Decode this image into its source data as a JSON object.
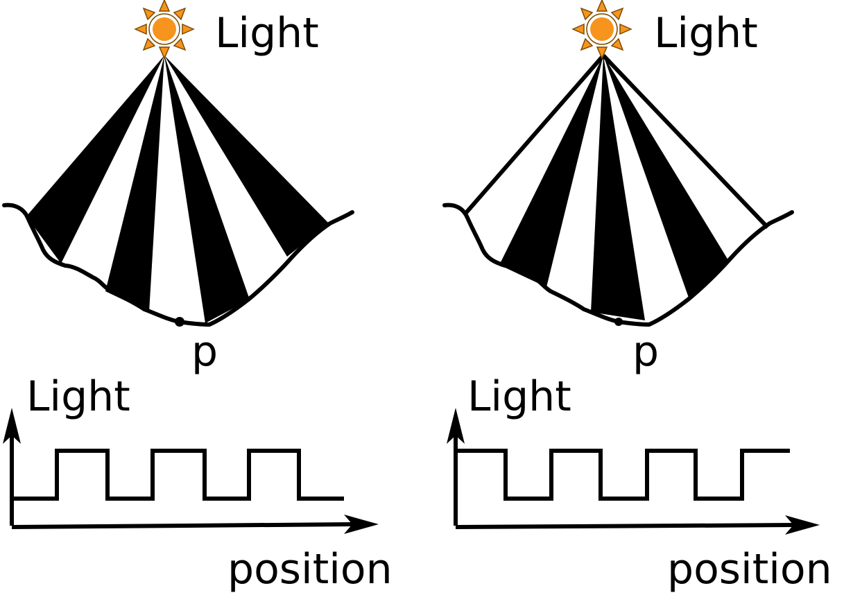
{
  "panels": [
    {
      "id": "left",
      "light_label": "Light",
      "point_label": "p",
      "graph": {
        "ylabel": "Light",
        "xlabel": "position",
        "pattern_starts": "low",
        "segments": [
          "low",
          "high",
          "low",
          "high",
          "low",
          "high",
          "low"
        ]
      }
    },
    {
      "id": "right",
      "light_label": "Light",
      "point_label": "p",
      "graph": {
        "ylabel": "Light",
        "xlabel": "position",
        "pattern_starts": "high",
        "segments": [
          "high",
          "low",
          "high",
          "low",
          "high",
          "low",
          "high"
        ]
      }
    }
  ],
  "colors": {
    "sun_fill": "#f7941d",
    "sun_stroke": "#7a4a00",
    "stripe": "#000000",
    "background": "#ffffff"
  },
  "icons": {
    "light_source": "sun-icon"
  }
}
